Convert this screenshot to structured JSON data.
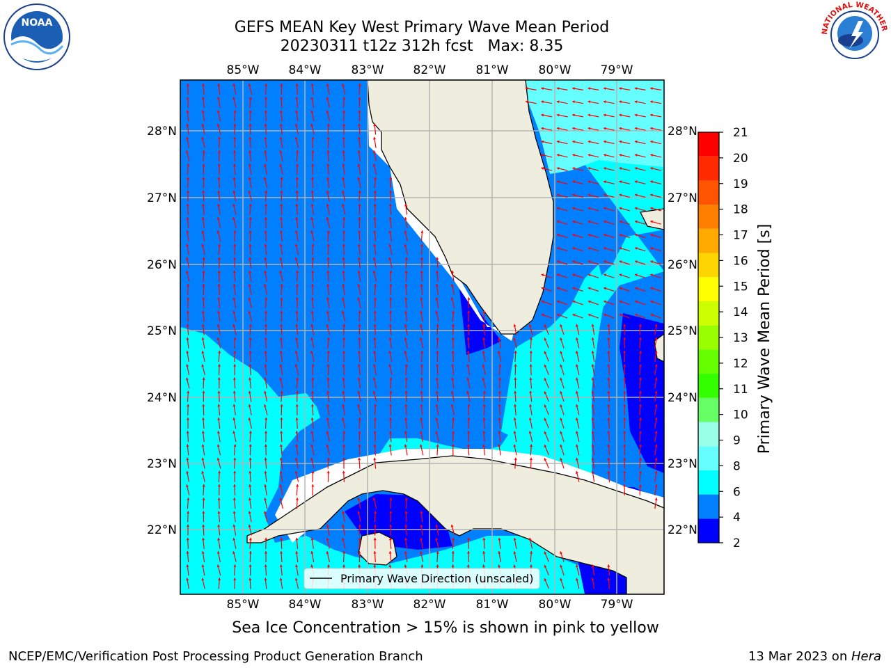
{
  "title": {
    "line1": "GEFS MEAN Key West Primary Wave Mean Period",
    "line2": "20230311 t12z 312h fcst   Max: 8.35"
  },
  "map": {
    "lon_labels": [
      "85°W",
      "84°W",
      "83°W",
      "82°W",
      "81°W",
      "80°W",
      "79°W"
    ],
    "lat_labels": [
      "28°N",
      "27°N",
      "26°N",
      "25°N",
      "24°N",
      "23°N",
      "22°N"
    ],
    "legend_label": "Primary Wave Direction (unscaled)",
    "vector_color": "#ff0000",
    "land_color": "#efedde"
  },
  "colorbar": {
    "label": "Primary Wave Mean Period [s]",
    "ticks": [
      "2",
      "4",
      "6",
      "8",
      "9",
      "10",
      "11",
      "12",
      "13",
      "14",
      "15",
      "16",
      "17",
      "18",
      "19",
      "20",
      "21"
    ],
    "colors": [
      "#0000ff",
      "#0080ff",
      "#00ffff",
      "#66ffff",
      "#99ffe6",
      "#66ff66",
      "#33ff00",
      "#66ff00",
      "#99ff00",
      "#ccff00",
      "#ffff00",
      "#ffd500",
      "#ffaa00",
      "#ff8000",
      "#ff5500",
      "#ff2a00",
      "#ff0000"
    ]
  },
  "note": "Sea Ice Concentration > 15% is shown in pink to yellow",
  "footer": {
    "left": "NCEP/EMC/Verification Post Processing Product Generation Branch",
    "right_date": "13 Mar 2023 on ",
    "right_host": "Hera"
  },
  "logos": {
    "noaa_text": "NOAA",
    "nws_text": "NATIONAL WEATHER SERVICE"
  }
}
